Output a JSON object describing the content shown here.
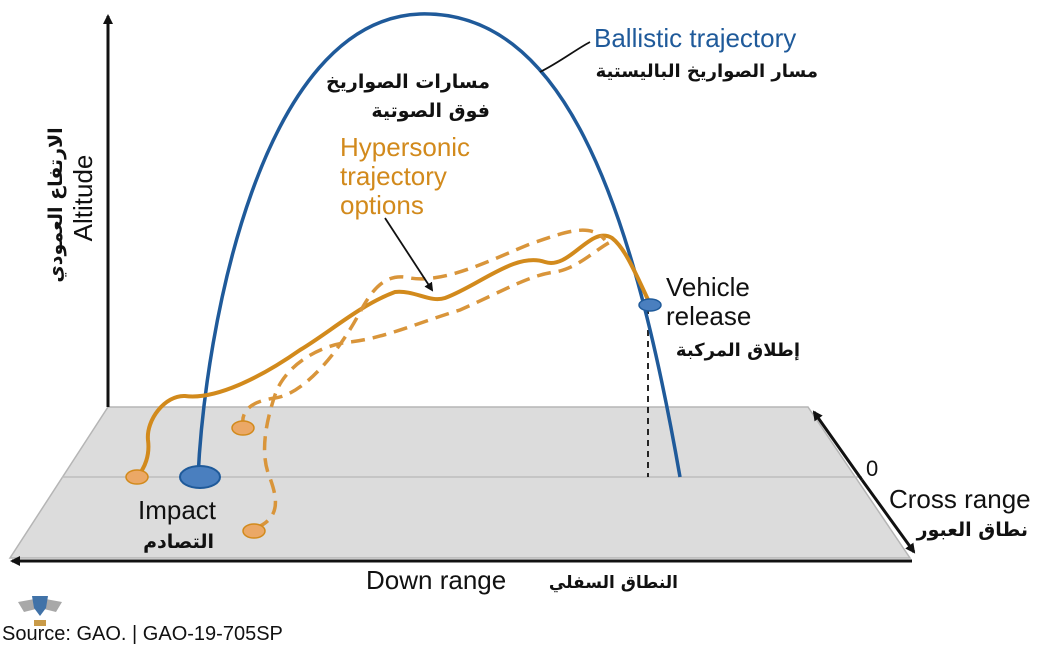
{
  "colors": {
    "ballistic": "#1f5a9a",
    "hypersonic": "#d28a1c",
    "hypersonic_light": "#e3a350",
    "ground": "#dcdcdc",
    "ground_edge": "#b5b5b5",
    "axis": "#111111",
    "text": "#111111"
  },
  "labels": {
    "ballistic_en": "Ballistic trajectory",
    "ballistic_ar": "مسار الصواريخ الباليستية",
    "hypersonic_ar_line1": "مسارات الصواريخ",
    "hypersonic_ar_line2": "فوق الصوتية",
    "hypersonic_en_line1": "Hypersonic",
    "hypersonic_en_line2": "trajectory",
    "hypersonic_en_line3": "options",
    "vehicle_en_line1": "Vehicle",
    "vehicle_en_line2": "release",
    "vehicle_ar": "إطلاق المركبة",
    "altitude_en": "Altitude",
    "altitude_ar": "الارتفاع العمودي",
    "impact_en": "Impact",
    "impact_ar": "التصادم",
    "cross_zero": "0",
    "cross_range_en": "Cross range",
    "cross_range_ar": "نطاق العبور",
    "down_range_en": "Down range",
    "down_range_ar": "النطاق السفلي",
    "source": "Source: GAO.  |  GAO-19-705SP"
  }
}
